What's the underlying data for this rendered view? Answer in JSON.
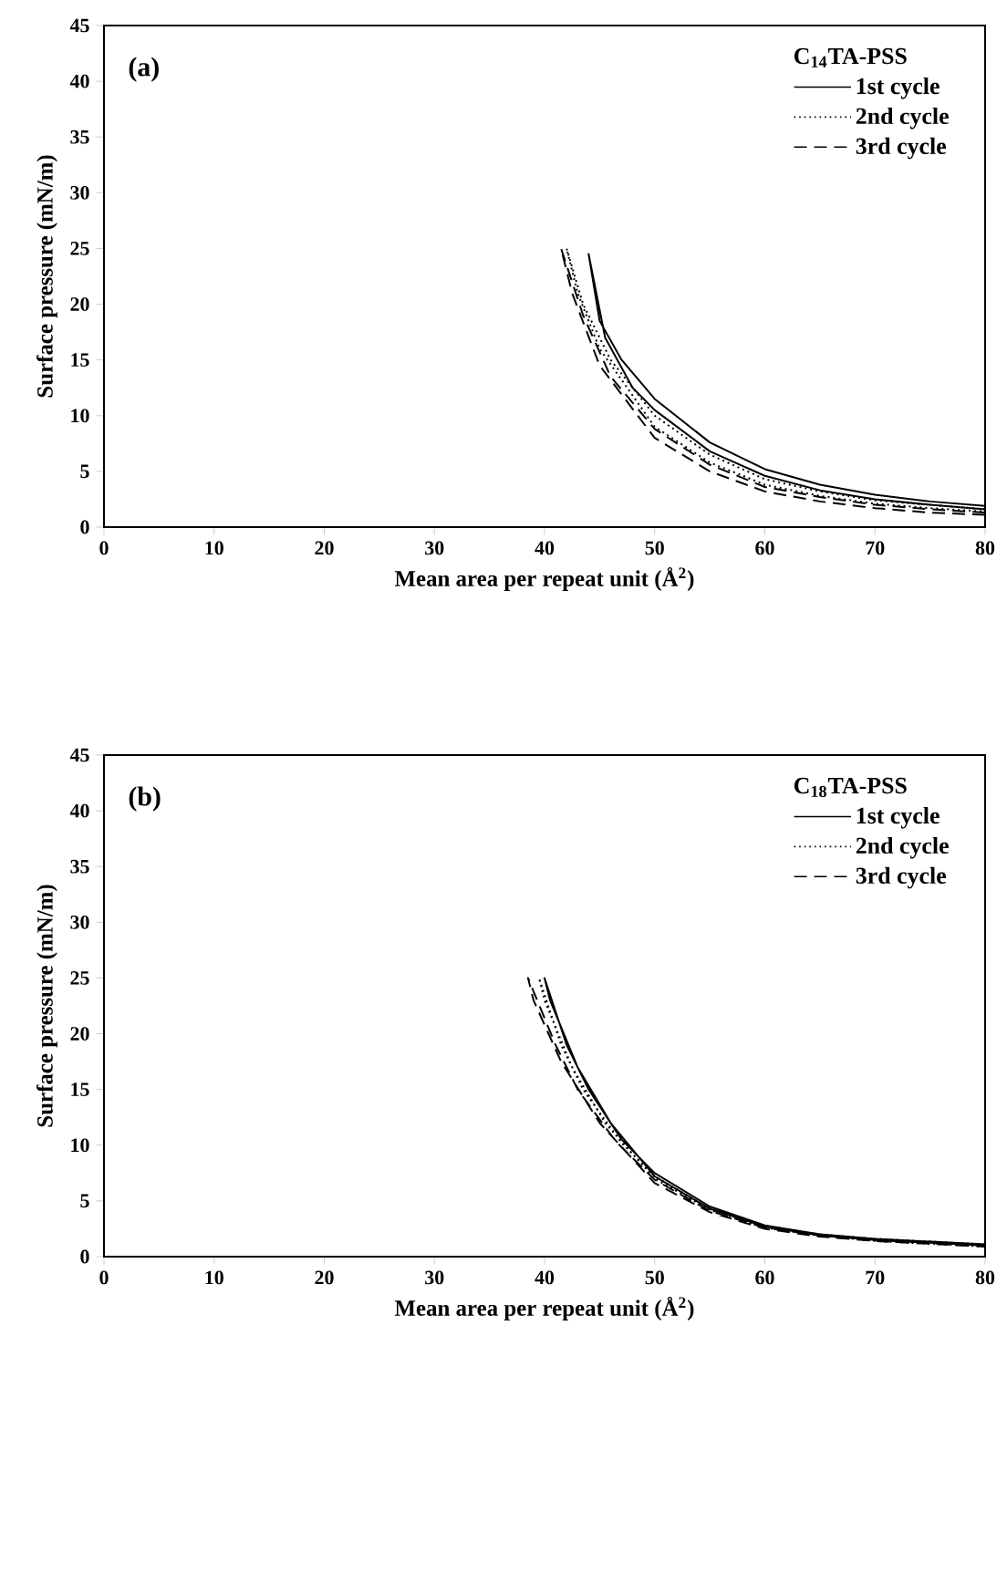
{
  "chart_data": [
    {
      "type": "line",
      "xlabel": "Mean area per repeat unit (Å$^{2}$)",
      "ylabel": "Surface pressure (mN/m)",
      "legend_title": "C$_{14}$TA-PSS",
      "annotations": [
        "(a)"
      ],
      "legend": "top right",
      "xlim": [
        0,
        80
      ],
      "ylim": [
        0,
        45
      ],
      "xticks": [
        0,
        10,
        20,
        30,
        40,
        50,
        60,
        70,
        80
      ],
      "yticks": [
        0,
        5,
        10,
        15,
        20,
        25,
        30,
        35,
        40,
        45
      ],
      "series": [
        {
          "name": "1st cycle",
          "color": "#000000",
          "line_style": "solid",
          "x": [
            80,
            75,
            70,
            65,
            60,
            55,
            50,
            47,
            45,
            44,
            45.5,
            48,
            50,
            55,
            60,
            65,
            70,
            75,
            80
          ],
          "values": [
            1.9,
            2.3,
            2.9,
            3.8,
            5.2,
            7.6,
            11.5,
            15,
            18.5,
            24.5,
            17,
            12.5,
            10.5,
            6.8,
            4.6,
            3.3,
            2.5,
            2.0,
            1.6
          ]
        },
        {
          "name": "2nd cycle",
          "color": "#000000",
          "line_style": "dotted",
          "x": [
            80,
            75,
            70,
            65,
            60,
            55,
            50,
            46,
            43.5,
            42,
            43,
            45,
            50,
            55,
            60,
            65,
            70,
            75,
            80
          ],
          "values": [
            1.6,
            2.0,
            2.4,
            3.2,
            4.3,
            6.5,
            10,
            15,
            20,
            25,
            21,
            16,
            9,
            5.8,
            3.8,
            2.8,
            2.1,
            1.7,
            1.4
          ]
        },
        {
          "name": "3rd cycle",
          "color": "#000000",
          "line_style": "dashed",
          "x": [
            80,
            75,
            70,
            65,
            60,
            55,
            50,
            46,
            43.5,
            41.5,
            42.5,
            45,
            50,
            55,
            60,
            65,
            70,
            75,
            80
          ],
          "values": [
            1.3,
            1.6,
            2.0,
            2.7,
            3.6,
            5.6,
            8.8,
            13.5,
            19,
            25,
            21,
            14.5,
            8,
            5,
            3.2,
            2.3,
            1.7,
            1.3,
            1.1
          ]
        }
      ]
    },
    {
      "type": "line",
      "xlabel": "Mean area per repeat unit (Å$^{2}$)",
      "ylabel": "Surface pressure (mN/m)",
      "legend_title": "C$_{18}$TA-PSS",
      "annotations": [
        "(b)"
      ],
      "legend": "top right",
      "xlim": [
        0,
        80
      ],
      "ylim": [
        0,
        45
      ],
      "xticks": [
        0,
        10,
        20,
        30,
        40,
        50,
        60,
        70,
        80
      ],
      "yticks": [
        0,
        5,
        10,
        15,
        20,
        25,
        30,
        35,
        40,
        45
      ],
      "series": [
        {
          "name": "1st cycle",
          "color": "#000000",
          "line_style": "solid",
          "x": [
            80,
            70,
            65,
            60,
            55,
            50,
            47,
            44,
            42,
            40,
            40.5,
            43,
            46,
            50,
            55,
            60,
            65,
            70,
            80
          ],
          "values": [
            1.1,
            1.6,
            2.0,
            2.8,
            4.5,
            7.5,
            10.5,
            15,
            19,
            25,
            23,
            17,
            12,
            7.2,
            4.3,
            2.7,
            1.9,
            1.5,
            1.0
          ]
        },
        {
          "name": "2nd cycle",
          "color": "#000000",
          "line_style": "dotted",
          "x": [
            80,
            70,
            65,
            60,
            55,
            50,
            47,
            43.5,
            41.5,
            39.5,
            40,
            42.5,
            45.5,
            50,
            55,
            60,
            65,
            70,
            80
          ],
          "values": [
            1.1,
            1.6,
            2.0,
            2.7,
            4.3,
            7.2,
            10.2,
            15,
            19,
            25,
            23,
            17,
            12,
            7,
            4.2,
            2.6,
            1.9,
            1.4,
            0.9
          ]
        },
        {
          "name": "3rd cycle",
          "color": "#000000",
          "line_style": "dashed",
          "x": [
            80,
            70,
            65,
            60,
            55,
            50,
            46.5,
            43,
            41,
            38.5,
            39,
            41.5,
            45,
            50,
            55,
            60,
            65,
            70,
            80
          ],
          "values": [
            1.0,
            1.5,
            1.9,
            2.6,
            4.1,
            6.9,
            10.3,
            15,
            19,
            25,
            23,
            17.5,
            12,
            6.6,
            4.0,
            2.5,
            1.8,
            1.4,
            0.9
          ]
        }
      ]
    }
  ]
}
